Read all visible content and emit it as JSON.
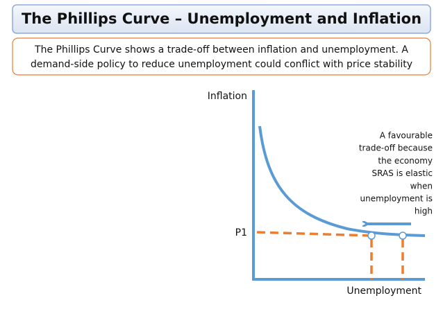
{
  "header": {
    "title": "The Phillips Curve – Unemployment and Inflation"
  },
  "intro": {
    "lines": [
      "The Phillips Curve shows a trade-off between inflation and unemployment. A",
      "demand-side policy to reduce unemployment could conflict with price stability"
    ]
  },
  "diagram": {
    "y_axis_label": "Inflation",
    "x_axis_label": "Unemployment",
    "p1_label": "P1",
    "annotation": [
      "A favourable",
      "trade-off because",
      "the economy",
      "SRAS is elastic",
      "when",
      "unemployment is",
      "high"
    ]
  }
}
